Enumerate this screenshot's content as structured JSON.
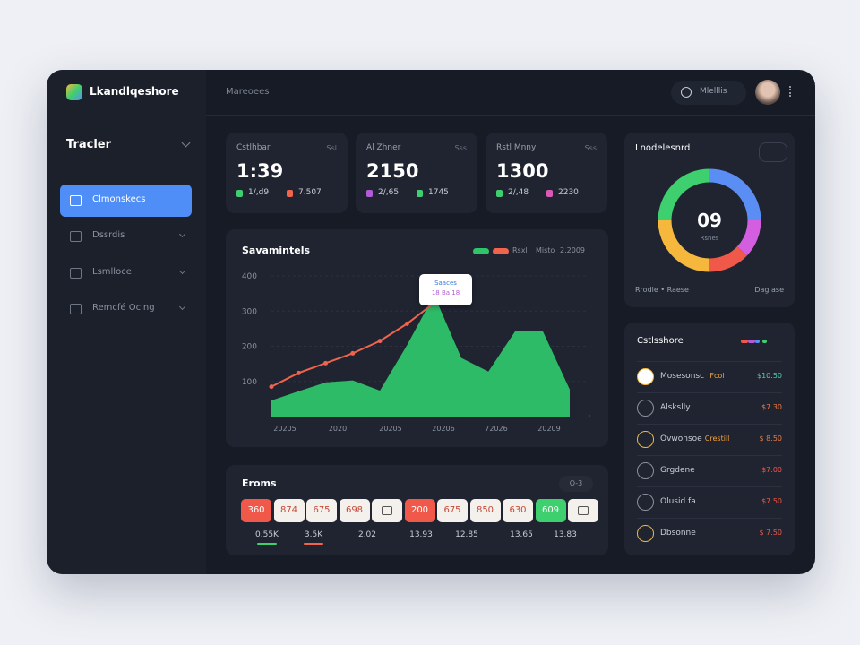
{
  "header": {
    "logo": "Lkandlqeshore",
    "breadcrumb": "Mareoees",
    "search_label": "Mlelllis"
  },
  "sidebar": {
    "title": "Tracler",
    "items": [
      "Clmonskecs",
      "Dssrdis",
      "Lsmlloce",
      "Remcfé Ocing"
    ]
  },
  "stats": [
    {
      "label": "Cstlhbar",
      "tag": "Ssl",
      "value": "1:39",
      "legend": [
        {
          "text": "1/,d9",
          "color": "#3ecf6e"
        },
        {
          "text": "7.507",
          "color": "#f0644e"
        }
      ]
    },
    {
      "label": "Al Zhner",
      "tag": "Sss",
      "value": "2150",
      "legend": [
        {
          "text": "2/,65",
          "color": "#b45ad8"
        },
        {
          "text": "1745",
          "color": "#3ecf6e"
        }
      ]
    },
    {
      "label": "Rstl Mnny",
      "tag": "Sss",
      "value": "1300",
      "legend": [
        {
          "text": "2/,48",
          "color": "#3ecf6e"
        },
        {
          "text": "2230",
          "color": "#d85ab4"
        }
      ]
    }
  ],
  "trend_chart": {
    "type": "area",
    "title": "Savamintels",
    "legend_note": "2.2009",
    "x_labels": [
      "20205",
      "2020",
      "20205",
      "20206",
      "72026",
      "20209"
    ],
    "ylim": [
      0,
      400
    ],
    "yticks": [
      100,
      200,
      300,
      400
    ],
    "grid": true,
    "tooltip": [
      "Saaces",
      "18 Ba 18"
    ],
    "series": [
      {
        "name": "Rsxl",
        "type": "area",
        "color": "#2fc46a",
        "values": [
          46,
          72,
          97,
          103,
          74,
          203,
          346,
          167,
          128,
          244,
          244,
          77
        ]
      },
      {
        "name": "Misto",
        "type": "line",
        "color": "#f0644e",
        "values": [
          85,
          124,
          152,
          180,
          215,
          264,
          323,
          null,
          null,
          null,
          null,
          null
        ]
      }
    ]
  },
  "events": {
    "title": "Eroms",
    "button": "O-3",
    "chips": [
      {
        "text": "360",
        "style": "red"
      },
      {
        "text": "874",
        "style": "light"
      },
      {
        "text": "675",
        "style": "light"
      },
      {
        "text": "698",
        "style": "light"
      },
      {
        "style": "icon"
      },
      {
        "text": "200",
        "style": "red"
      },
      {
        "text": "675",
        "style": "light"
      },
      {
        "text": "850",
        "style": "light"
      },
      {
        "text": "630",
        "style": "light"
      },
      {
        "text": "609",
        "style": "green"
      },
      {
        "style": "icon"
      }
    ],
    "stats": [
      {
        "text": "0.55K",
        "underline": "#3ecf6e"
      },
      {
        "text": "3.5K",
        "underline": "#f0644e"
      },
      {
        "text": "2.02"
      },
      {
        "text": "13.93"
      },
      {
        "text": "12.85"
      },
      {
        "text": "13.65"
      },
      {
        "text": "13.83"
      }
    ]
  },
  "donut": {
    "type": "pie",
    "title": "Lnodelesnrd",
    "center_value": "09",
    "center_label": "Rsnes",
    "footer_left": "Rrodle • Raese",
    "footer_right": "Dag ase",
    "values": [
      25,
      12,
      13,
      25,
      25
    ],
    "colors": [
      "#5b8ef5",
      "#d45ee0",
      "#f0584a",
      "#f5b83d",
      "#3ecf6e"
    ]
  },
  "list": {
    "title": "Cstlsshore",
    "rows": [
      {
        "name": "Mosesonsc",
        "tag": "Fcol",
        "amount": "$10.50",
        "amount_color": "#4fd1b0",
        "icon_color": "#f5b83d"
      },
      {
        "name": "Alskslly",
        "amount": "$7.30",
        "amount_color": "#f07a3e",
        "icon_color": "#8a91a0"
      },
      {
        "name": "Ovwonsoe",
        "tag": "Crestill",
        "amount": "$ 8.50",
        "amount_color": "#f07a3e",
        "icon_color": "#f5b83d"
      },
      {
        "name": "Grgdene",
        "amount": "$7.00",
        "amount_color": "#f0584a",
        "icon_color": "#8a91a0"
      },
      {
        "name": "Olusid fa",
        "amount": "$7.50",
        "amount_color": "#f0584a",
        "icon_color": "#8a91a0"
      },
      {
        "name": "Dbsonne",
        "amount": "$ 7.50",
        "amount_color": "#f0584a",
        "icon_color": "#f5b83d"
      }
    ]
  }
}
